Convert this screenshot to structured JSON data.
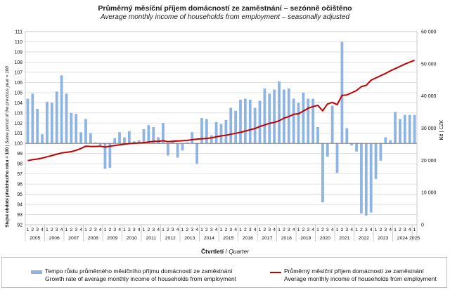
{
  "chart_data": {
    "type": "bar+line",
    "title": "Průměrný měsíční příjem domácností ze zaměstnání – sezónně očištěno",
    "subtitle": "Average monthly income of households from employment – seasonally adjusted",
    "ylabel_left_cz": "Stejné období předchozího roku = 100",
    "ylabel_left_en": "Same period of the previous year = 100",
    "ylabel_right_cz": "Kč",
    "ylabel_right_en": "CZK",
    "xlabel_cz": "Čtvrtletí",
    "xlabel_en": "Quarter",
    "ylim_left": [
      92,
      111
    ],
    "ylim_right": [
      0,
      60000
    ],
    "left_ticks": [
      "92",
      "93",
      "94",
      "95",
      "96",
      "97",
      "98",
      "99",
      "100",
      "101",
      "102",
      "103",
      "104",
      "105",
      "106",
      "107",
      "108",
      "109",
      "110",
      "111"
    ],
    "right_ticks": [
      "0",
      "10 000",
      "20 000",
      "30 000",
      "40 000",
      "50 000",
      "60 000"
    ],
    "baseline": 100,
    "years": [
      "2005",
      "2006",
      "2007",
      "2008",
      "2009",
      "2010",
      "2011",
      "2012",
      "2013",
      "2014",
      "2015",
      "2016",
      "2017",
      "2018",
      "2019",
      "2020",
      "2021",
      "2022",
      "2023",
      "2024",
      "2025"
    ],
    "quarters_per_year": [
      4,
      4,
      4,
      4,
      4,
      4,
      4,
      4,
      4,
      4,
      4,
      4,
      4,
      4,
      4,
      4,
      4,
      4,
      4,
      4,
      1
    ],
    "series": [
      {
        "name": "Tempo růstu průměrného měsíčního příjmu domácností ze zaměstnání",
        "name_en": "Growth rate of average monthly income of households from employment",
        "axis": "left",
        "type": "bar",
        "color": "#8eb4e3",
        "values": [
          104.4,
          104.9,
          103.4,
          100.9,
          104.1,
          104.0,
          105.1,
          106.7,
          104.9,
          103.0,
          102.9,
          101.1,
          102.4,
          101.0,
          100.1,
          99.8,
          97.5,
          97.6,
          100.5,
          101.1,
          100.6,
          101.2,
          100.2,
          100.3,
          101.4,
          101.8,
          101.6,
          100.6,
          102.0,
          98.8,
          100.3,
          98.6,
          99.3,
          100.1,
          101.1,
          98.0,
          102.5,
          102.4,
          100.8,
          102.1,
          101.9,
          102.3,
          103.5,
          103.2,
          104.3,
          104.4,
          104.3,
          103.5,
          104.2,
          105.4,
          104.9,
          105.3,
          106.1,
          105.3,
          105.4,
          104.4,
          104.0,
          105.0,
          104.4,
          104.4,
          101.6,
          94.2,
          98.7,
          103.7,
          97.1,
          110.0,
          101.5,
          99.8,
          99.2,
          93.1,
          92.9,
          93.2,
          96.5,
          98.3,
          100.6,
          100.3,
          103.1,
          102.4,
          102.8,
          102.8,
          102.8
        ]
      },
      {
        "name": "Průměrný měsíční příjem domácností ze zaměstnání",
        "name_en": "Average monthly income of households from employment",
        "axis": "right",
        "type": "line",
        "color": "#c00000",
        "values": [
          19900,
          20200,
          20400,
          20700,
          21100,
          21500,
          21900,
          22300,
          22500,
          22700,
          23100,
          23700,
          24400,
          24300,
          24300,
          24400,
          24100,
          24400,
          24600,
          24800,
          25000,
          25200,
          25300,
          25400,
          25500,
          25700,
          25900,
          25900,
          26100,
          25800,
          25900,
          26000,
          26100,
          26200,
          26400,
          26600,
          26700,
          26800,
          27000,
          27300,
          27600,
          27800,
          28100,
          28400,
          28700,
          29100,
          29500,
          29900,
          30500,
          31000,
          31500,
          31800,
          32300,
          33100,
          33600,
          34300,
          34500,
          35300,
          36200,
          36700,
          37100,
          35400,
          37500,
          38000,
          37300,
          40200,
          40300,
          41000,
          41700,
          42900,
          43300,
          44900,
          45600,
          46300,
          47000,
          47800,
          48500,
          49200,
          49900,
          50500,
          51100
        ]
      }
    ]
  }
}
